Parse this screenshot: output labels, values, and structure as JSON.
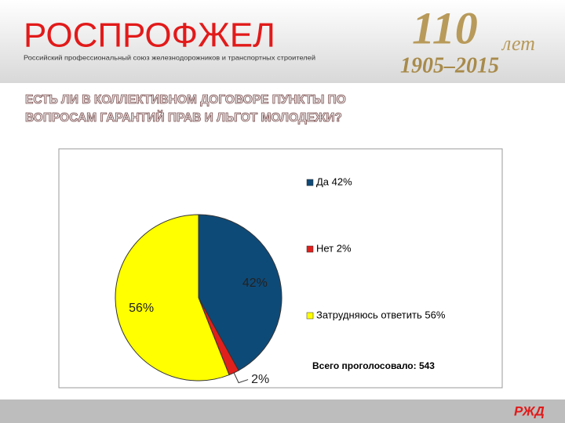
{
  "header": {
    "brand": "РОСПРОФЖЕЛ",
    "brand_subtitle": "Российский профессиональный союз железнодорожников и транспортных строителей",
    "logo_number": "110",
    "logo_word": "лет",
    "logo_years": "1905–2015"
  },
  "footer": {
    "logo": "РЖД"
  },
  "chart_data": {
    "type": "pie",
    "title": [
      "ЕСТЬ ЛИ В КОЛЛЕКТИВНОМ ДОГОВОРЕ ПУНКТЫ ПО",
      "ВОПРОСАМ ГАРАНТИЙ ПРАВ И ЛЬГОТ МОЛОДЕЖИ?"
    ],
    "categories": [
      "Да",
      "Нет",
      "Затрудняюсь ответить"
    ],
    "legend_labels": [
      "Да 42%",
      "Нет 2%",
      "Затрудняюсь ответить 56%"
    ],
    "values": [
      42,
      2,
      56
    ],
    "value_labels": [
      "42%",
      "2%",
      "56%"
    ],
    "colors": [
      "#0e4a78",
      "#e0201c",
      "#ffff00"
    ],
    "annotation": "Всего проголосовало: 543",
    "legend": "right"
  }
}
